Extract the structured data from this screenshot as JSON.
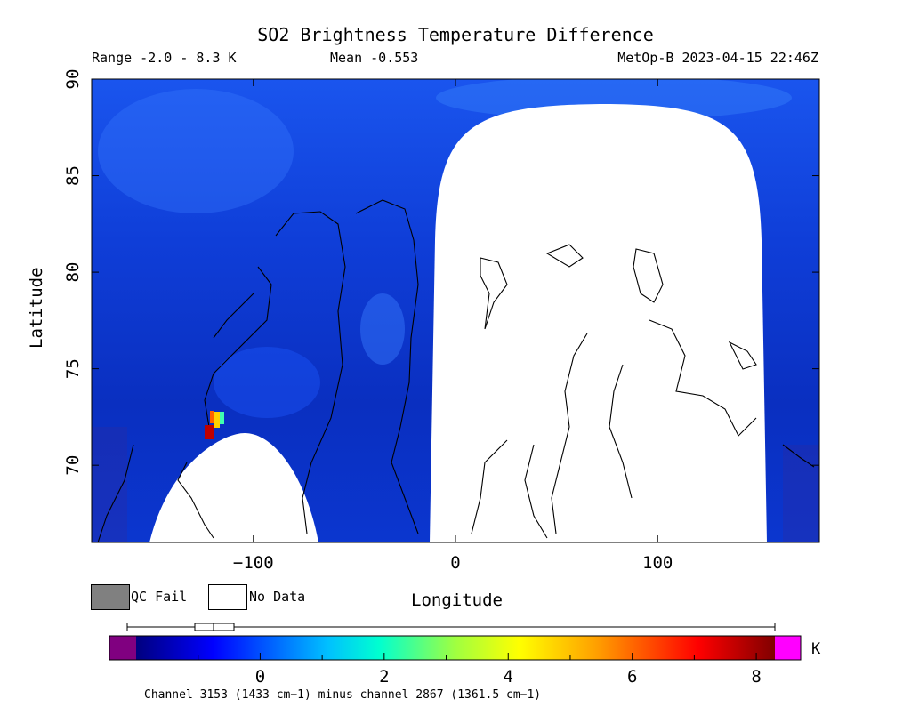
{
  "chart_data": {
    "type": "heatmap",
    "title": "SO2 Brightness Temperature Difference",
    "subtitle_left": "Range -2.0 - 8.3 K",
    "subtitle_mid": "Mean -0.553",
    "subtitle_right": "MetOp-B 2023-04-15 22:46Z",
    "xlabel": "Longitude",
    "ylabel": "Latitude",
    "xlim": [
      -180,
      180
    ],
    "ylim": [
      66,
      90
    ],
    "x_ticks": [
      -100,
      0,
      100
    ],
    "x_tick_labels": [
      "−100",
      "0",
      "100"
    ],
    "y_ticks": [
      70,
      75,
      80,
      85,
      90
    ],
    "y_tick_labels": [
      "70",
      "75",
      "80",
      "85",
      "90"
    ],
    "colorbar": {
      "range": [
        -2.0,
        8.3
      ],
      "ticks": [
        0,
        2,
        4,
        6,
        8
      ],
      "tick_labels": [
        "0",
        "2",
        "4",
        "6",
        "8"
      ],
      "unit": "K",
      "below_color": "#800080",
      "above_color": "#ff00ff"
    },
    "background_value_approx": -0.55,
    "hotspots": [
      {
        "lon": -121,
        "lat": 71.3,
        "value": 8.0
      },
      {
        "lon": -118,
        "lat": 72.0,
        "value": 3.5
      }
    ],
    "no_data_regions": [
      "western swath gap (~-160 to -70 lon, south of ~71.5)",
      "eastern swath gap (~-12 to 155 lon, south of ~88.7)"
    ],
    "footnote": "Channel 3153 (1433 cm−1) minus channel 2867 (1361.5 cm−1)"
  },
  "legend": {
    "qc_fail": "QC Fail",
    "no_data": "No Data",
    "qc_color": "#808080"
  }
}
